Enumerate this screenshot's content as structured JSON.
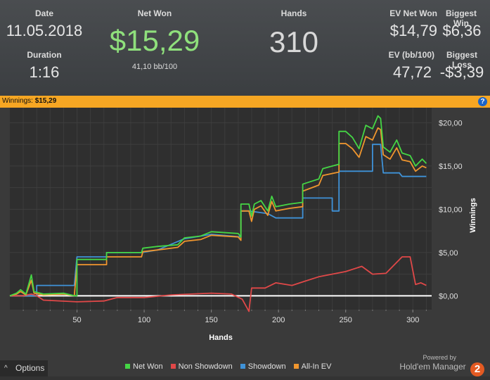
{
  "header": {
    "date_label": "Date",
    "date_value": "11.05.2018",
    "duration_label": "Duration",
    "duration_value": "1:16",
    "net_won_label": "Net Won",
    "net_won_value": "$15,29",
    "bb_value": "41,10 bb/100",
    "hands_label": "Hands",
    "hands_value": "310",
    "ev_net_won_label": "EV Net Won",
    "ev_net_won_value": "$14,79",
    "biggest_win_label": "Biggest Win",
    "biggest_win_value": "$6,36",
    "ev_bb_label": "EV (bb/100)",
    "ev_bb_value": "47,72",
    "biggest_loss_label": "Biggest Loss",
    "biggest_loss_value": "-$3,39",
    "net_color": "#8fe07c"
  },
  "bar": {
    "label": "Winnings:",
    "value": "$15,29",
    "help_icon": "?"
  },
  "footer": {
    "options_label": "Options",
    "chevron_icon": "^",
    "powered_by": "Powered by",
    "brand": "Hold'em Manager",
    "brand_badge": "2"
  },
  "chart_data": {
    "type": "line",
    "xlabel": "Hands",
    "ylabel": "Winnings",
    "xlim": [
      0,
      314
    ],
    "ylim": [
      -1.6,
      22.8
    ],
    "x_ticks": [
      50,
      100,
      150,
      200,
      250,
      300
    ],
    "y_ticks": [
      0,
      5,
      10,
      15,
      20
    ],
    "y_tick_labels": [
      "$0,00",
      "$5,00",
      "$10,00",
      "$15,00",
      "$20,00"
    ],
    "legend_position": "bottom",
    "series": [
      {
        "name": "Net Won",
        "color": "#45d645",
        "points": [
          [
            0,
            0
          ],
          [
            5,
            0.3
          ],
          [
            8,
            0.7
          ],
          [
            12,
            0.2
          ],
          [
            16,
            2.4
          ],
          [
            18,
            0.5
          ],
          [
            25,
            0.2
          ],
          [
            40,
            0.3
          ],
          [
            48,
            0
          ],
          [
            50,
            0
          ],
          [
            50,
            4.2
          ],
          [
            72,
            4.2
          ],
          [
            72,
            5.0
          ],
          [
            98,
            5.0
          ],
          [
            99,
            5.5
          ],
          [
            110,
            5.7
          ],
          [
            125,
            5.9
          ],
          [
            130,
            6.7
          ],
          [
            142,
            6.9
          ],
          [
            150,
            7.4
          ],
          [
            170,
            7.2
          ],
          [
            172,
            6.8
          ],
          [
            172,
            10.6
          ],
          [
            178,
            10.6
          ],
          [
            180,
            9.2
          ],
          [
            182,
            10.6
          ],
          [
            187,
            11.0
          ],
          [
            192,
            9.8
          ],
          [
            195,
            11.5
          ],
          [
            198,
            10.3
          ],
          [
            208,
            10.6
          ],
          [
            218,
            10.8
          ],
          [
            218,
            12.9
          ],
          [
            230,
            13.5
          ],
          [
            233,
            14.7
          ],
          [
            245,
            15.2
          ],
          [
            245,
            19.0
          ],
          [
            250,
            19.0
          ],
          [
            255,
            18.3
          ],
          [
            260,
            17.0
          ],
          [
            265,
            19.7
          ],
          [
            270,
            19.3
          ],
          [
            274,
            20.8
          ],
          [
            276,
            20.5
          ],
          [
            278,
            17.2
          ],
          [
            283,
            16.6
          ],
          [
            288,
            18.0
          ],
          [
            292,
            16.5
          ],
          [
            298,
            16.2
          ],
          [
            302,
            15.0
          ],
          [
            307,
            15.8
          ],
          [
            310,
            15.3
          ]
        ]
      },
      {
        "name": "Non Showdown",
        "color": "#e04848",
        "points": [
          [
            0,
            0
          ],
          [
            10,
            0
          ],
          [
            16,
            0.2
          ],
          [
            20,
            0
          ],
          [
            25,
            -0.5
          ],
          [
            50,
            -0.7
          ],
          [
            70,
            -0.6
          ],
          [
            80,
            -0.2
          ],
          [
            100,
            -0.2
          ],
          [
            120,
            0.1
          ],
          [
            150,
            0.3
          ],
          [
            165,
            0.2
          ],
          [
            173,
            -0.4
          ],
          [
            178,
            -1.8
          ],
          [
            180,
            0.9
          ],
          [
            190,
            0.9
          ],
          [
            198,
            1.5
          ],
          [
            210,
            1.2
          ],
          [
            220,
            1.7
          ],
          [
            230,
            2.2
          ],
          [
            250,
            2.8
          ],
          [
            262,
            3.4
          ],
          [
            270,
            2.5
          ],
          [
            280,
            2.6
          ],
          [
            292,
            4.5
          ],
          [
            298,
            4.5
          ],
          [
            302,
            1.3
          ],
          [
            306,
            1.5
          ],
          [
            310,
            1.2
          ]
        ]
      },
      {
        "name": "Showdown",
        "color": "#3f92d8",
        "points": [
          [
            0,
            0
          ],
          [
            20,
            0
          ],
          [
            20,
            1.2
          ],
          [
            48,
            1.2
          ],
          [
            50,
            4.5
          ],
          [
            72,
            4.5
          ],
          [
            72,
            5.0
          ],
          [
            98,
            5.0
          ],
          [
            110,
            5.3
          ],
          [
            130,
            6.6
          ],
          [
            150,
            7.1
          ],
          [
            172,
            6.8
          ],
          [
            172,
            9.8
          ],
          [
            178,
            9.8
          ],
          [
            192,
            9.5
          ],
          [
            198,
            9.0
          ],
          [
            218,
            9.0
          ],
          [
            218,
            11.3
          ],
          [
            240,
            11.3
          ],
          [
            240,
            9.8
          ],
          [
            245,
            9.8
          ],
          [
            245,
            14.4
          ],
          [
            250,
            14.4
          ],
          [
            260,
            14.4
          ],
          [
            270,
            14.4
          ],
          [
            270,
            17.5
          ],
          [
            276,
            17.5
          ],
          [
            278,
            14.2
          ],
          [
            290,
            14.2
          ],
          [
            292,
            13.8
          ],
          [
            310,
            13.8
          ]
        ]
      },
      {
        "name": "All-In EV",
        "color": "#f0962e",
        "points": [
          [
            0,
            0
          ],
          [
            5,
            0.2
          ],
          [
            8,
            0.5
          ],
          [
            12,
            0.1
          ],
          [
            16,
            1.8
          ],
          [
            18,
            0.3
          ],
          [
            25,
            0.1
          ],
          [
            40,
            0.2
          ],
          [
            48,
            0
          ],
          [
            50,
            3.6
          ],
          [
            72,
            3.6
          ],
          [
            72,
            4.5
          ],
          [
            98,
            4.5
          ],
          [
            99,
            5.1
          ],
          [
            110,
            5.3
          ],
          [
            125,
            5.6
          ],
          [
            130,
            6.3
          ],
          [
            142,
            6.5
          ],
          [
            150,
            7.0
          ],
          [
            170,
            6.8
          ],
          [
            172,
            6.4
          ],
          [
            172,
            9.8
          ],
          [
            178,
            9.8
          ],
          [
            180,
            8.6
          ],
          [
            182,
            10.0
          ],
          [
            187,
            10.4
          ],
          [
            192,
            9.3
          ],
          [
            195,
            10.9
          ],
          [
            198,
            9.8
          ],
          [
            208,
            10.1
          ],
          [
            218,
            10.3
          ],
          [
            218,
            12.1
          ],
          [
            230,
            12.8
          ],
          [
            233,
            13.9
          ],
          [
            245,
            14.3
          ],
          [
            245,
            17.6
          ],
          [
            250,
            17.6
          ],
          [
            255,
            17.0
          ],
          [
            260,
            16.0
          ],
          [
            265,
            18.4
          ],
          [
            270,
            18.0
          ],
          [
            274,
            19.4
          ],
          [
            276,
            19.2
          ],
          [
            278,
            16.3
          ],
          [
            283,
            15.8
          ],
          [
            288,
            17.1
          ],
          [
            292,
            15.7
          ],
          [
            298,
            15.5
          ],
          [
            302,
            14.4
          ],
          [
            307,
            15.0
          ],
          [
            310,
            14.8
          ]
        ]
      }
    ]
  }
}
